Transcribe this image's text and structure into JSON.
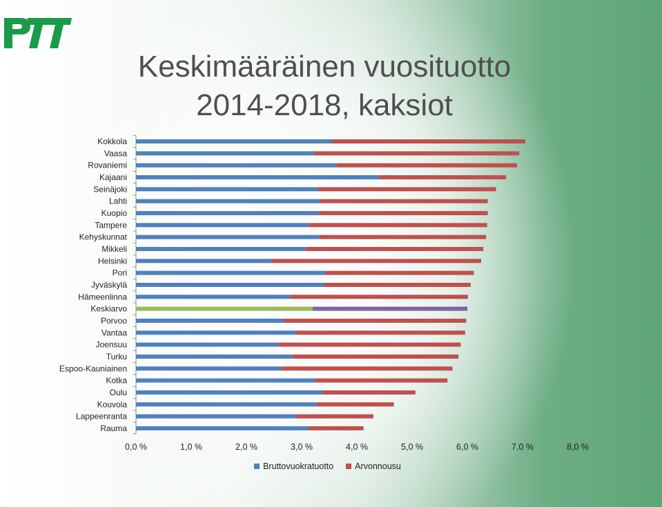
{
  "logo": {
    "text": "PTT",
    "color": "#1a9a4a"
  },
  "title": {
    "line1": "Keskimääräinen vuosituotto",
    "line2": "2014-2018, kaksiot"
  },
  "legend": [
    {
      "label": "Bruttovuokratuotto",
      "color": "#4f81bd"
    },
    {
      "label": "Arvonnousu",
      "color": "#c0504d"
    }
  ],
  "chart_data": {
    "type": "bar",
    "orientation": "horizontal",
    "stacked": true,
    "categories": [
      "Kokkola",
      "Vaasa",
      "Rovaniemi",
      "Kajaani",
      "Seinäjoki",
      "Lahti",
      "Kuopio",
      "Tampere",
      "Kehyskunnat",
      "Mikkeli",
      "Helsinki",
      "Pori",
      "Jyväskylä",
      "Hämeenlinna",
      "Keskiarvo",
      "Porvoo",
      "Vantaa",
      "Joensuu",
      "Turku",
      "Espoo-Kauniainen",
      "Kotka",
      "Oulu",
      "Kouvola",
      "Lappeenranta",
      "Rauma"
    ],
    "series": [
      {
        "name": "Bruttovuokratuotto",
        "color": "#4f81bd",
        "values": [
          3.55,
          3.22,
          3.63,
          4.4,
          3.3,
          3.33,
          3.31,
          3.13,
          3.32,
          3.07,
          2.45,
          3.43,
          3.4,
          2.79,
          3.2,
          2.67,
          2.9,
          2.58,
          2.84,
          2.63,
          3.24,
          3.38,
          3.27,
          2.9,
          3.12
        ]
      },
      {
        "name": "Arvonnousu",
        "color": "#c0504d",
        "values": [
          3.5,
          3.72,
          3.27,
          2.3,
          3.22,
          3.04,
          3.06,
          3.23,
          3.02,
          3.22,
          3.8,
          2.69,
          2.66,
          3.22,
          2.8,
          3.31,
          3.06,
          3.3,
          3.0,
          3.1,
          2.4,
          1.68,
          1.4,
          1.4,
          1.0
        ]
      }
    ],
    "highlight": {
      "category": "Keskiarvo",
      "colors": [
        "#9bbb59",
        "#8064a2"
      ]
    },
    "xlim": [
      0,
      8
    ],
    "xticks": [
      "0,0 %",
      "1,0 %",
      "2,0 %",
      "3,0 %",
      "4,0 %",
      "5,0 %",
      "6,0 %",
      "7,0 %",
      "8,0 %"
    ],
    "legend_position": "bottom"
  }
}
